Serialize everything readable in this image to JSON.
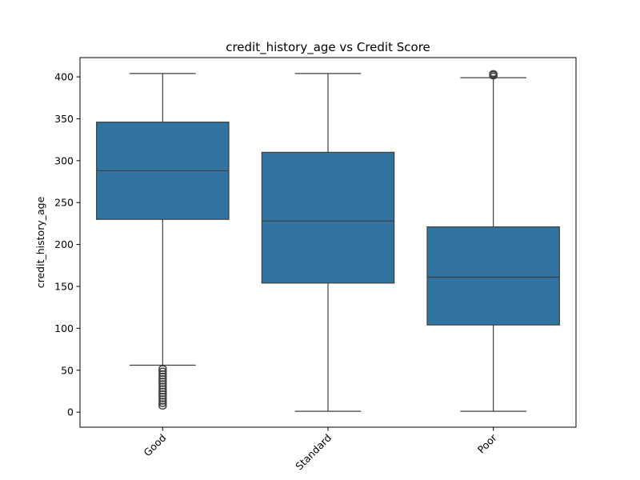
{
  "chart_data": {
    "type": "box",
    "title": "credit_history_age vs Credit Score",
    "xlabel": "",
    "ylabel": "credit_history_age",
    "categories": [
      "Good",
      "Standard",
      "Poor"
    ],
    "ylim": [
      -18,
      423
    ],
    "yticks": [
      0,
      50,
      100,
      150,
      200,
      250,
      300,
      350,
      400
    ],
    "boxes": [
      {
        "category": "Good",
        "whisker_low": 56,
        "q1": 230,
        "median": 288,
        "q3": 346,
        "whisker_high": 404,
        "outliers": [
          52,
          49,
          46,
          43,
          40,
          37,
          34,
          31,
          28,
          25,
          22,
          19,
          16,
          13,
          10,
          7
        ]
      },
      {
        "category": "Standard",
        "whisker_low": 1,
        "q1": 154,
        "median": 228,
        "q3": 310,
        "whisker_high": 404,
        "outliers": []
      },
      {
        "category": "Poor",
        "whisker_low": 1,
        "q1": 104,
        "median": 161,
        "q3": 221,
        "whisker_high": 399,
        "outliers": [
          401,
          403,
          404
        ]
      }
    ],
    "box_color": "#3274a1",
    "line_color": "#3f3f3f",
    "grid": false,
    "legend": "none",
    "xtick_rotation_deg": 45
  }
}
